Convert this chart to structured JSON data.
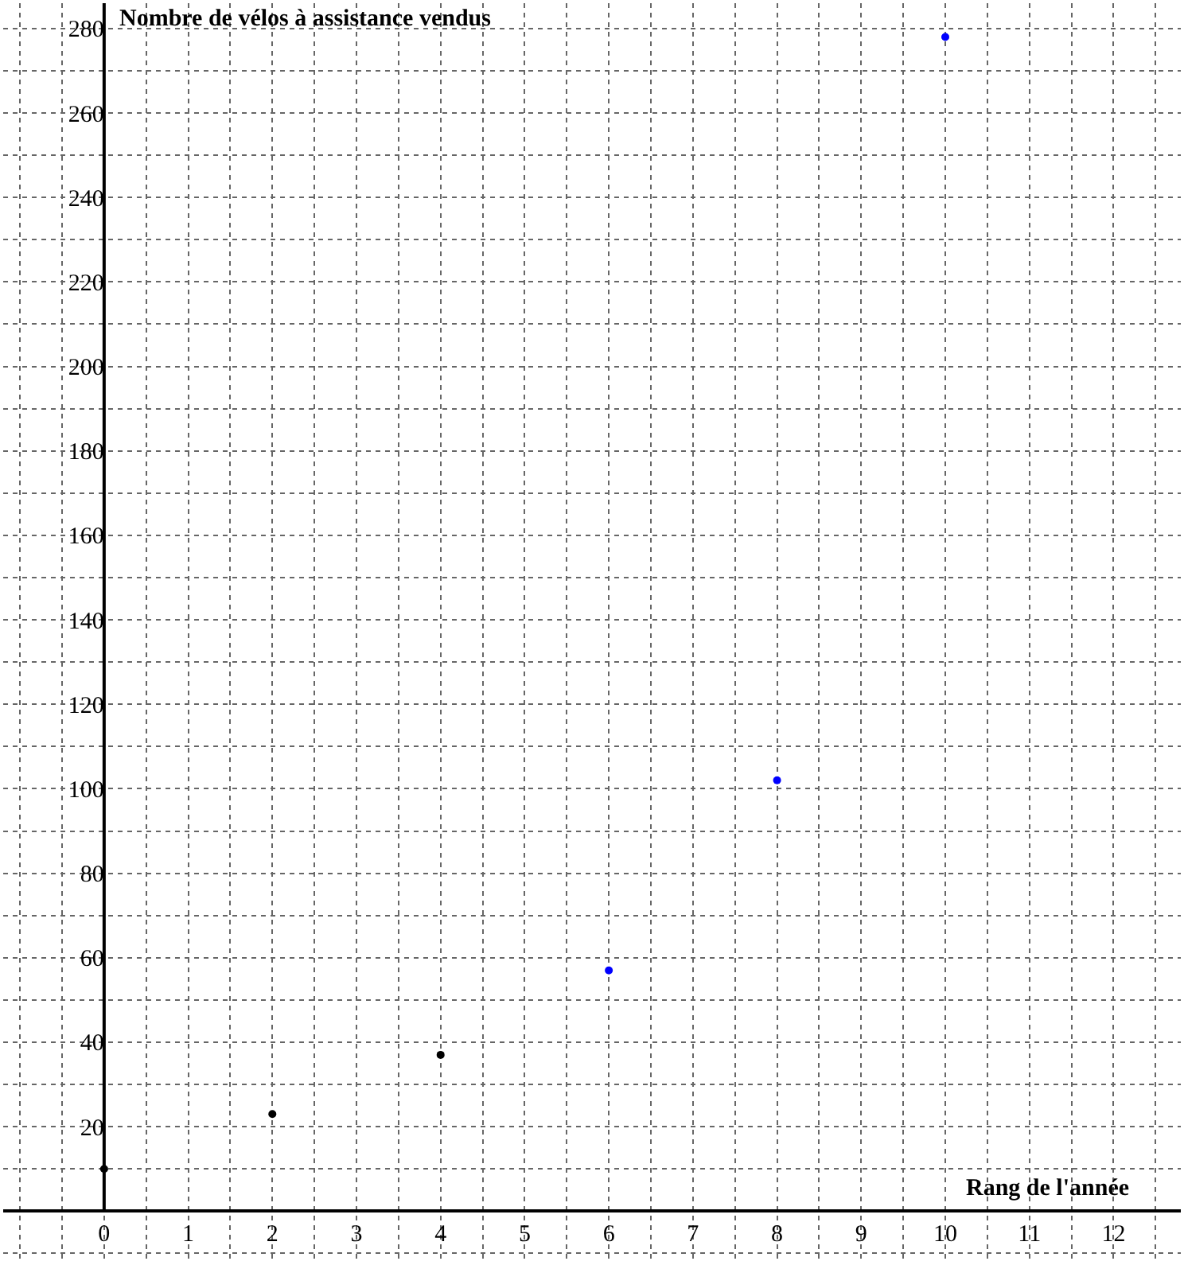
{
  "chart_data": {
    "type": "scatter",
    "xlabel": "Rang de l'année",
    "ylabel": "Nombre de vélos à assistance vendus",
    "x": [
      0,
      2,
      4,
      6,
      8,
      10
    ],
    "series": [
      {
        "values": [
          10,
          23,
          37,
          57,
          102,
          278
        ],
        "colors": [
          "#000000",
          "#000000",
          "#000000",
          "#0000ff",
          "#0000ff",
          "#0000ff"
        ]
      }
    ],
    "xlim": [
      -1.2,
      12.8
    ],
    "ylim": [
      -12,
      286
    ],
    "xticks": [
      0,
      1,
      2,
      3,
      4,
      5,
      6,
      7,
      8,
      9,
      10,
      11,
      12
    ],
    "yticks": [
      20,
      40,
      60,
      80,
      100,
      120,
      140,
      160,
      180,
      200,
      220,
      240,
      260,
      280
    ],
    "grid": true,
    "marker": "circle"
  }
}
